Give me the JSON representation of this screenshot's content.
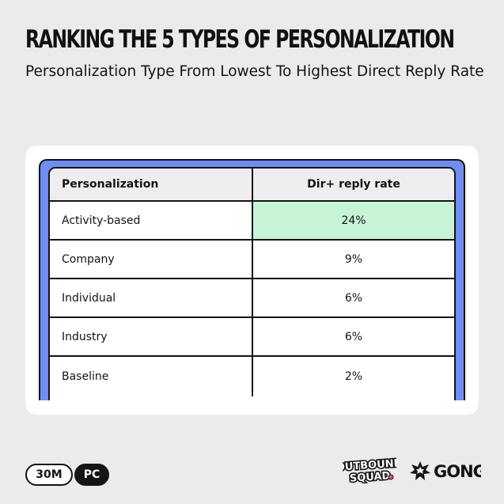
{
  "header": {
    "title": "RANKING THE 5 TYPES OF PERSONALIZATION",
    "subtitle": "Personalization Type From Lowest To Highest Direct Reply Rate"
  },
  "table": {
    "columns": [
      "Personalization",
      "Dir+ reply rate"
    ],
    "rows": [
      {
        "name": "Activity-based",
        "rate": "24%",
        "highlighted": true
      },
      {
        "name": "Company",
        "rate": "9%"
      },
      {
        "name": "Individual",
        "rate": "6%"
      },
      {
        "name": "Industry",
        "rate": "6%"
      },
      {
        "name": "Baseline",
        "rate": "2%"
      }
    ]
  },
  "footer": {
    "badge_left": "30M",
    "badge_right": "PC",
    "logo_outbound_line1": "OUTBOUND",
    "logo_outbound_line2": "SQUAD",
    "logo_gong": "GONG"
  },
  "colors": {
    "background": "#eceaec",
    "table_accent": "#6f8df2",
    "highlight": "#c8f4d6",
    "text": "#141414"
  },
  "icons": {
    "gong_mark": "starburst-icon"
  }
}
